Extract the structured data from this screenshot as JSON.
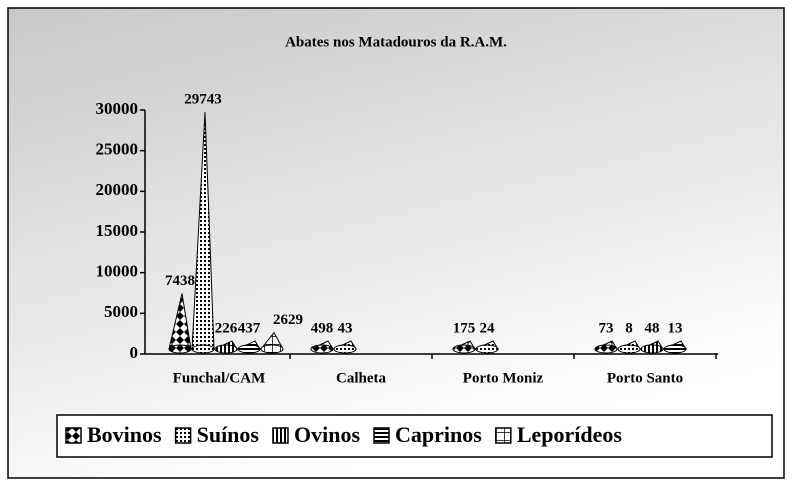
{
  "chart_data": {
    "type": "cone",
    "title": "Abates nos Matadouros da R.A.M.",
    "categories": [
      "Funchal/CAM",
      "Calheta",
      "Porto Moniz",
      "Porto Santo"
    ],
    "series": [
      {
        "name": "Bovinos",
        "values": [
          7438,
          498,
          175,
          73
        ]
      },
      {
        "name": "Suínos",
        "values": [
          29743,
          43,
          24,
          8
        ]
      },
      {
        "name": "Ovinos",
        "values": [
          226,
          null,
          null,
          48
        ]
      },
      {
        "name": "Caprinos",
        "values": [
          437,
          null,
          null,
          13
        ]
      },
      {
        "name": "Leporídeos",
        "values": [
          2629,
          null,
          null,
          null
        ]
      }
    ],
    "ylim": [
      0,
      30000
    ],
    "yticks": [
      0,
      5000,
      10000,
      15000,
      20000,
      25000,
      30000
    ],
    "legend": "bottom"
  }
}
